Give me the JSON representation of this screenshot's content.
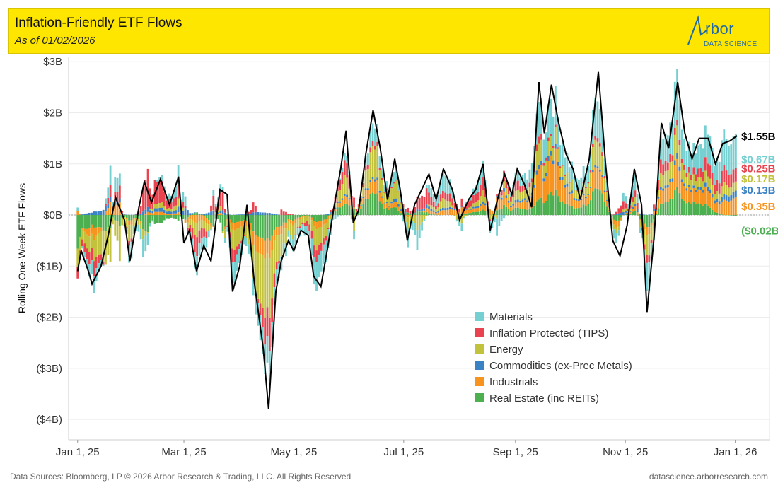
{
  "header": {
    "title": "Inflation-Friendly ETF Flows",
    "subtitle": "As of 01/02/2026",
    "logo_text": "rbor",
    "logo_sub": "DATA SCIENCE"
  },
  "footer": {
    "left": "Data Sources: Bloomberg, LP © 2026 Arbor Research & Trading, LLC. All Rights Reserved",
    "right": "datascience.arborresearch.com"
  },
  "chart_data": {
    "type": "bar",
    "stacked": true,
    "title": "Inflation-Friendly ETF Flows",
    "subtitle": "As of 01/02/2026",
    "ylabel": "Rolling One-Week ETF Flows",
    "xlabel": "",
    "ylim": [
      -4.4,
      3.1
    ],
    "y_ticks": [
      3,
      2,
      1,
      0,
      -1,
      -2,
      -3,
      -4
    ],
    "y_tick_labels": [
      "$3B",
      "$2B",
      "$1B",
      "$0B",
      "($1B)",
      "($2B)",
      "($3B)",
      "($4B)"
    ],
    "x_range": [
      "2024-12-27",
      "2026-01-20"
    ],
    "x_ticks": [
      "2025-01-01",
      "2025-03-01",
      "2025-05-01",
      "2025-07-01",
      "2025-09-01",
      "2025-11-01",
      "2026-01-01"
    ],
    "x_tick_labels": [
      "Jan 1, 25",
      "Mar 1, 25",
      "May 1, 25",
      "Jul 1, 25",
      "Sep 1, 25",
      "Nov 1, 25",
      "Jan 1, 26"
    ],
    "grid": true,
    "legend_position": "bottom-right",
    "series_colors": {
      "Materials": "#76cfd1",
      "Inflation Protected (TIPS)": "#e8434f",
      "Energy": "#c3c23d",
      "Commodities (ex-Prec Metals)": "#3b82c4",
      "Industrials": "#f7941f",
      "Real Estate (inc REITs)": "#4caf50",
      "Total": "#000000"
    },
    "legend": [
      {
        "name": "Materials",
        "color": "#76cfd1"
      },
      {
        "name": "Inflation Protected (TIPS)",
        "color": "#e8434f"
      },
      {
        "name": "Energy",
        "color": "#c3c23d"
      },
      {
        "name": "Commodities (ex-Prec Metals)",
        "color": "#3b82c4"
      },
      {
        "name": "Industrials",
        "color": "#f7941f"
      },
      {
        "name": "Real Estate (inc REITs)",
        "color": "#4caf50"
      }
    ],
    "end_labels": [
      {
        "series": "Total",
        "label": "$1.55B",
        "color": "#000000"
      },
      {
        "series": "Materials",
        "label": "$0.67B",
        "color": "#76cfd1"
      },
      {
        "series": "Inflation Protected (TIPS)",
        "label": "$0.25B",
        "color": "#e8434f"
      },
      {
        "series": "Energy",
        "label": "$0.17B",
        "color": "#c3c23d"
      },
      {
        "series": "Commodities (ex-Prec Metals)",
        "label": "$0.13B",
        "color": "#3b82c4"
      },
      {
        "series": "Industrials",
        "label": "$0.35B",
        "color": "#f7941f"
      },
      {
        "series": "Real Estate (inc REITs)",
        "label": "($0.02B)",
        "color": "#4caf50"
      }
    ],
    "total_line": {
      "name": "Total",
      "points": [
        [
          "2025-01-01",
          -1.1
        ],
        [
          "2025-01-03",
          -0.7
        ],
        [
          "2025-01-07",
          -1.1
        ],
        [
          "2025-01-09",
          -1.35
        ],
        [
          "2025-01-14",
          -1.0
        ],
        [
          "2025-01-18",
          -0.4
        ],
        [
          "2025-01-22",
          0.35
        ],
        [
          "2025-01-27",
          -0.1
        ],
        [
          "2025-01-30",
          -0.9
        ],
        [
          "2025-02-04",
          0.15
        ],
        [
          "2025-02-07",
          0.65
        ],
        [
          "2025-02-11",
          0.25
        ],
        [
          "2025-02-16",
          0.7
        ],
        [
          "2025-02-21",
          0.2
        ],
        [
          "2025-02-26",
          0.75
        ],
        [
          "2025-03-01",
          -0.55
        ],
        [
          "2025-03-04",
          -0.3
        ],
        [
          "2025-03-08",
          -1.1
        ],
        [
          "2025-03-12",
          -0.6
        ],
        [
          "2025-03-16",
          -0.9
        ],
        [
          "2025-03-21",
          0.5
        ],
        [
          "2025-03-25",
          0.4
        ],
        [
          "2025-03-28",
          -1.5
        ],
        [
          "2025-04-01",
          -1.0
        ],
        [
          "2025-04-05",
          0.2
        ],
        [
          "2025-04-09",
          -1.3
        ],
        [
          "2025-04-14",
          -2.6
        ],
        [
          "2025-04-17",
          -3.8
        ],
        [
          "2025-04-21",
          -1.5
        ],
        [
          "2025-04-24",
          -0.9
        ],
        [
          "2025-04-28",
          -0.5
        ],
        [
          "2025-05-01",
          -0.7
        ],
        [
          "2025-05-05",
          -0.3
        ],
        [
          "2025-05-09",
          -0.4
        ],
        [
          "2025-05-12",
          -1.2
        ],
        [
          "2025-05-16",
          -1.4
        ],
        [
          "2025-05-20",
          -0.6
        ],
        [
          "2025-05-23",
          0.1
        ],
        [
          "2025-05-27",
          0.9
        ],
        [
          "2025-05-30",
          1.65
        ],
        [
          "2025-06-03",
          -0.15
        ],
        [
          "2025-06-06",
          0.1
        ],
        [
          "2025-06-10",
          1.2
        ],
        [
          "2025-06-14",
          2.05
        ],
        [
          "2025-06-18",
          1.3
        ],
        [
          "2025-06-22",
          0.3
        ],
        [
          "2025-06-26",
          1.1
        ],
        [
          "2025-06-29",
          0.5
        ],
        [
          "2025-07-03",
          -0.5
        ],
        [
          "2025-07-07",
          0.2
        ],
        [
          "2025-07-11",
          0.5
        ],
        [
          "2025-07-15",
          0.8
        ],
        [
          "2025-07-19",
          0.3
        ],
        [
          "2025-07-23",
          0.9
        ],
        [
          "2025-07-28",
          0.5
        ],
        [
          "2025-08-01",
          -0.1
        ],
        [
          "2025-08-06",
          0.3
        ],
        [
          "2025-08-10",
          0.5
        ],
        [
          "2025-08-14",
          1.0
        ],
        [
          "2025-08-18",
          -0.3
        ],
        [
          "2025-08-22",
          0.3
        ],
        [
          "2025-08-26",
          0.8
        ],
        [
          "2025-08-30",
          0.4
        ],
        [
          "2025-09-02",
          0.9
        ],
        [
          "2025-09-06",
          0.6
        ],
        [
          "2025-09-10",
          0.15
        ],
        [
          "2025-09-14",
          2.6
        ],
        [
          "2025-09-17",
          1.6
        ],
        [
          "2025-09-21",
          2.55
        ],
        [
          "2025-09-25",
          1.8
        ],
        [
          "2025-09-29",
          1.2
        ],
        [
          "2025-10-03",
          0.9
        ],
        [
          "2025-10-07",
          0.3
        ],
        [
          "2025-10-12",
          1.1
        ],
        [
          "2025-10-17",
          2.8
        ],
        [
          "2025-10-21",
          1.0
        ],
        [
          "2025-10-25",
          -0.5
        ],
        [
          "2025-10-29",
          -0.8
        ],
        [
          "2025-11-02",
          -0.2
        ],
        [
          "2025-11-06",
          0.9
        ],
        [
          "2025-11-10",
          0.2
        ],
        [
          "2025-11-13",
          -1.9
        ],
        [
          "2025-11-17",
          -0.4
        ],
        [
          "2025-11-21",
          1.8
        ],
        [
          "2025-11-25",
          1.3
        ],
        [
          "2025-11-30",
          2.6
        ],
        [
          "2025-12-04",
          1.6
        ],
        [
          "2025-12-08",
          1.1
        ],
        [
          "2025-12-12",
          1.5
        ],
        [
          "2025-12-17",
          1.5
        ],
        [
          "2025-12-21",
          1.0
        ],
        [
          "2025-12-25",
          1.4
        ],
        [
          "2025-12-29",
          1.45
        ],
        [
          "2026-01-02",
          1.55
        ]
      ]
    },
    "series_extremes_note": "",
    "stack_keypoints": [
      [
        "2025-01-01",
        0.05,
        -0.15,
        -0.25,
        0.0,
        0.05,
        -0.45
      ],
      [
        "2025-01-09",
        -0.3,
        -0.25,
        -0.3,
        0.05,
        -0.2,
        -0.2
      ],
      [
        "2025-01-22",
        0.3,
        0.2,
        -0.3,
        0.05,
        0.2,
        -0.1
      ],
      [
        "2025-01-30",
        -0.35,
        -0.1,
        -0.3,
        0.0,
        -0.1,
        -0.1
      ],
      [
        "2025-02-11",
        -0.05,
        0.4,
        0.05,
        0.05,
        0.05,
        -0.15
      ],
      [
        "2025-02-26",
        0.35,
        0.25,
        0.15,
        0.1,
        0.05,
        -0.1
      ],
      [
        "2025-03-08",
        -0.35,
        -0.35,
        -0.25,
        0.0,
        -0.15,
        0.05
      ],
      [
        "2025-03-21",
        0.2,
        0.3,
        0.1,
        0.05,
        0.05,
        -0.15
      ],
      [
        "2025-03-28",
        -0.45,
        -0.3,
        -0.4,
        0.0,
        -0.15,
        -0.15
      ],
      [
        "2025-04-09",
        -0.3,
        0.2,
        -0.6,
        0.05,
        -0.25,
        -0.3
      ],
      [
        "2025-04-17",
        -0.7,
        -0.8,
        -1.4,
        0.05,
        -0.4,
        -0.6
      ],
      [
        "2025-04-24",
        -0.25,
        0.1,
        -0.4,
        0.0,
        -0.15,
        -0.2
      ],
      [
        "2025-05-09",
        -0.2,
        -0.1,
        -0.1,
        0.0,
        0.0,
        0.0
      ],
      [
        "2025-05-16",
        -0.5,
        -0.2,
        -0.4,
        0.0,
        -0.15,
        -0.15
      ],
      [
        "2025-05-30",
        0.2,
        0.4,
        0.5,
        0.05,
        0.2,
        0.3
      ],
      [
        "2025-06-03",
        -0.1,
        0.1,
        -0.2,
        0.0,
        0.0,
        0.05
      ],
      [
        "2025-06-14",
        0.4,
        0.1,
        0.7,
        0.05,
        0.3,
        0.5
      ],
      [
        "2025-06-29",
        0.15,
        0.0,
        0.2,
        0.05,
        0.05,
        0.05
      ],
      [
        "2025-07-03",
        -0.4,
        0.1,
        -0.25,
        0.0,
        -0.05,
        0.05
      ],
      [
        "2025-07-23",
        0.4,
        0.15,
        0.2,
        0.05,
        0.1,
        0.0
      ],
      [
        "2025-08-01",
        -0.1,
        0.05,
        -0.1,
        0.0,
        0.05,
        0.0
      ],
      [
        "2025-08-14",
        0.3,
        0.25,
        0.2,
        0.05,
        0.1,
        0.1
      ],
      [
        "2025-08-18",
        -0.25,
        -0.05,
        -0.1,
        0.0,
        0.1,
        0.0
      ],
      [
        "2025-09-02",
        0.2,
        0.2,
        0.2,
        0.05,
        0.1,
        0.15
      ],
      [
        "2025-09-14",
        0.8,
        0.15,
        0.5,
        0.1,
        0.7,
        0.35
      ],
      [
        "2025-09-21",
        0.75,
        0.05,
        0.3,
        0.1,
        0.8,
        0.5
      ],
      [
        "2025-10-03",
        0.3,
        0.0,
        0.2,
        0.05,
        0.2,
        0.15
      ],
      [
        "2025-10-17",
        0.9,
        0.1,
        0.6,
        0.05,
        0.5,
        0.65
      ],
      [
        "2025-10-25",
        -0.2,
        0.0,
        -0.1,
        0.0,
        -0.1,
        -0.1
      ],
      [
        "2025-11-06",
        0.35,
        0.15,
        0.15,
        0.05,
        0.1,
        0.1
      ],
      [
        "2025-11-13",
        -0.7,
        -0.2,
        -0.5,
        0.0,
        -0.2,
        -0.3
      ],
      [
        "2025-11-21",
        0.6,
        0.3,
        0.3,
        0.05,
        0.3,
        0.25
      ],
      [
        "2025-11-30",
        0.9,
        0.1,
        0.5,
        0.1,
        0.5,
        0.5
      ],
      [
        "2025-12-12",
        0.5,
        0.2,
        0.2,
        0.05,
        0.3,
        0.25
      ],
      [
        "2025-12-25",
        0.6,
        0.3,
        0.2,
        0.1,
        0.25,
        0.0
      ],
      [
        "2026-01-02",
        0.67,
        0.25,
        0.17,
        0.13,
        0.35,
        -0.02
      ]
    ],
    "stack_order": [
      "Real Estate (inc REITs)",
      "Industrials",
      "Commodities (ex-Prec Metals)",
      "Energy",
      "Inflation Protected (TIPS)",
      "Materials"
    ]
  }
}
